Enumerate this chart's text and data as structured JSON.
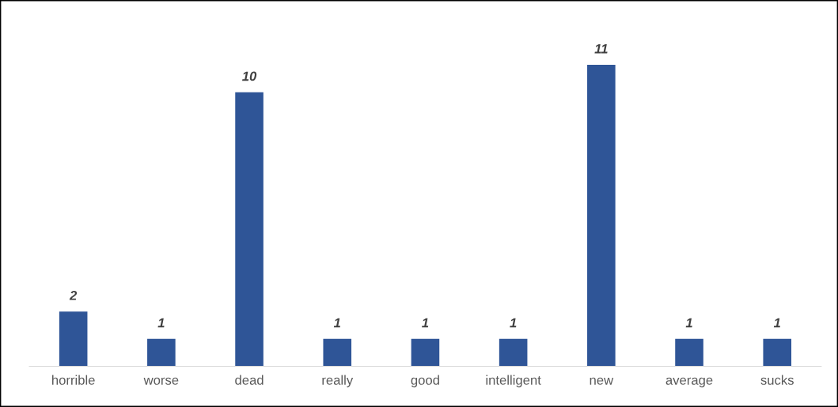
{
  "chart_data": {
    "type": "bar",
    "categories": [
      "horrible",
      "worse",
      "dead",
      "really",
      "good",
      "intelligent",
      "new",
      "average",
      "sucks"
    ],
    "values": [
      2,
      1,
      10,
      1,
      1,
      1,
      11,
      1,
      1
    ],
    "color": "#2f5597",
    "data_labels": true,
    "grid": false,
    "legend": false
  }
}
